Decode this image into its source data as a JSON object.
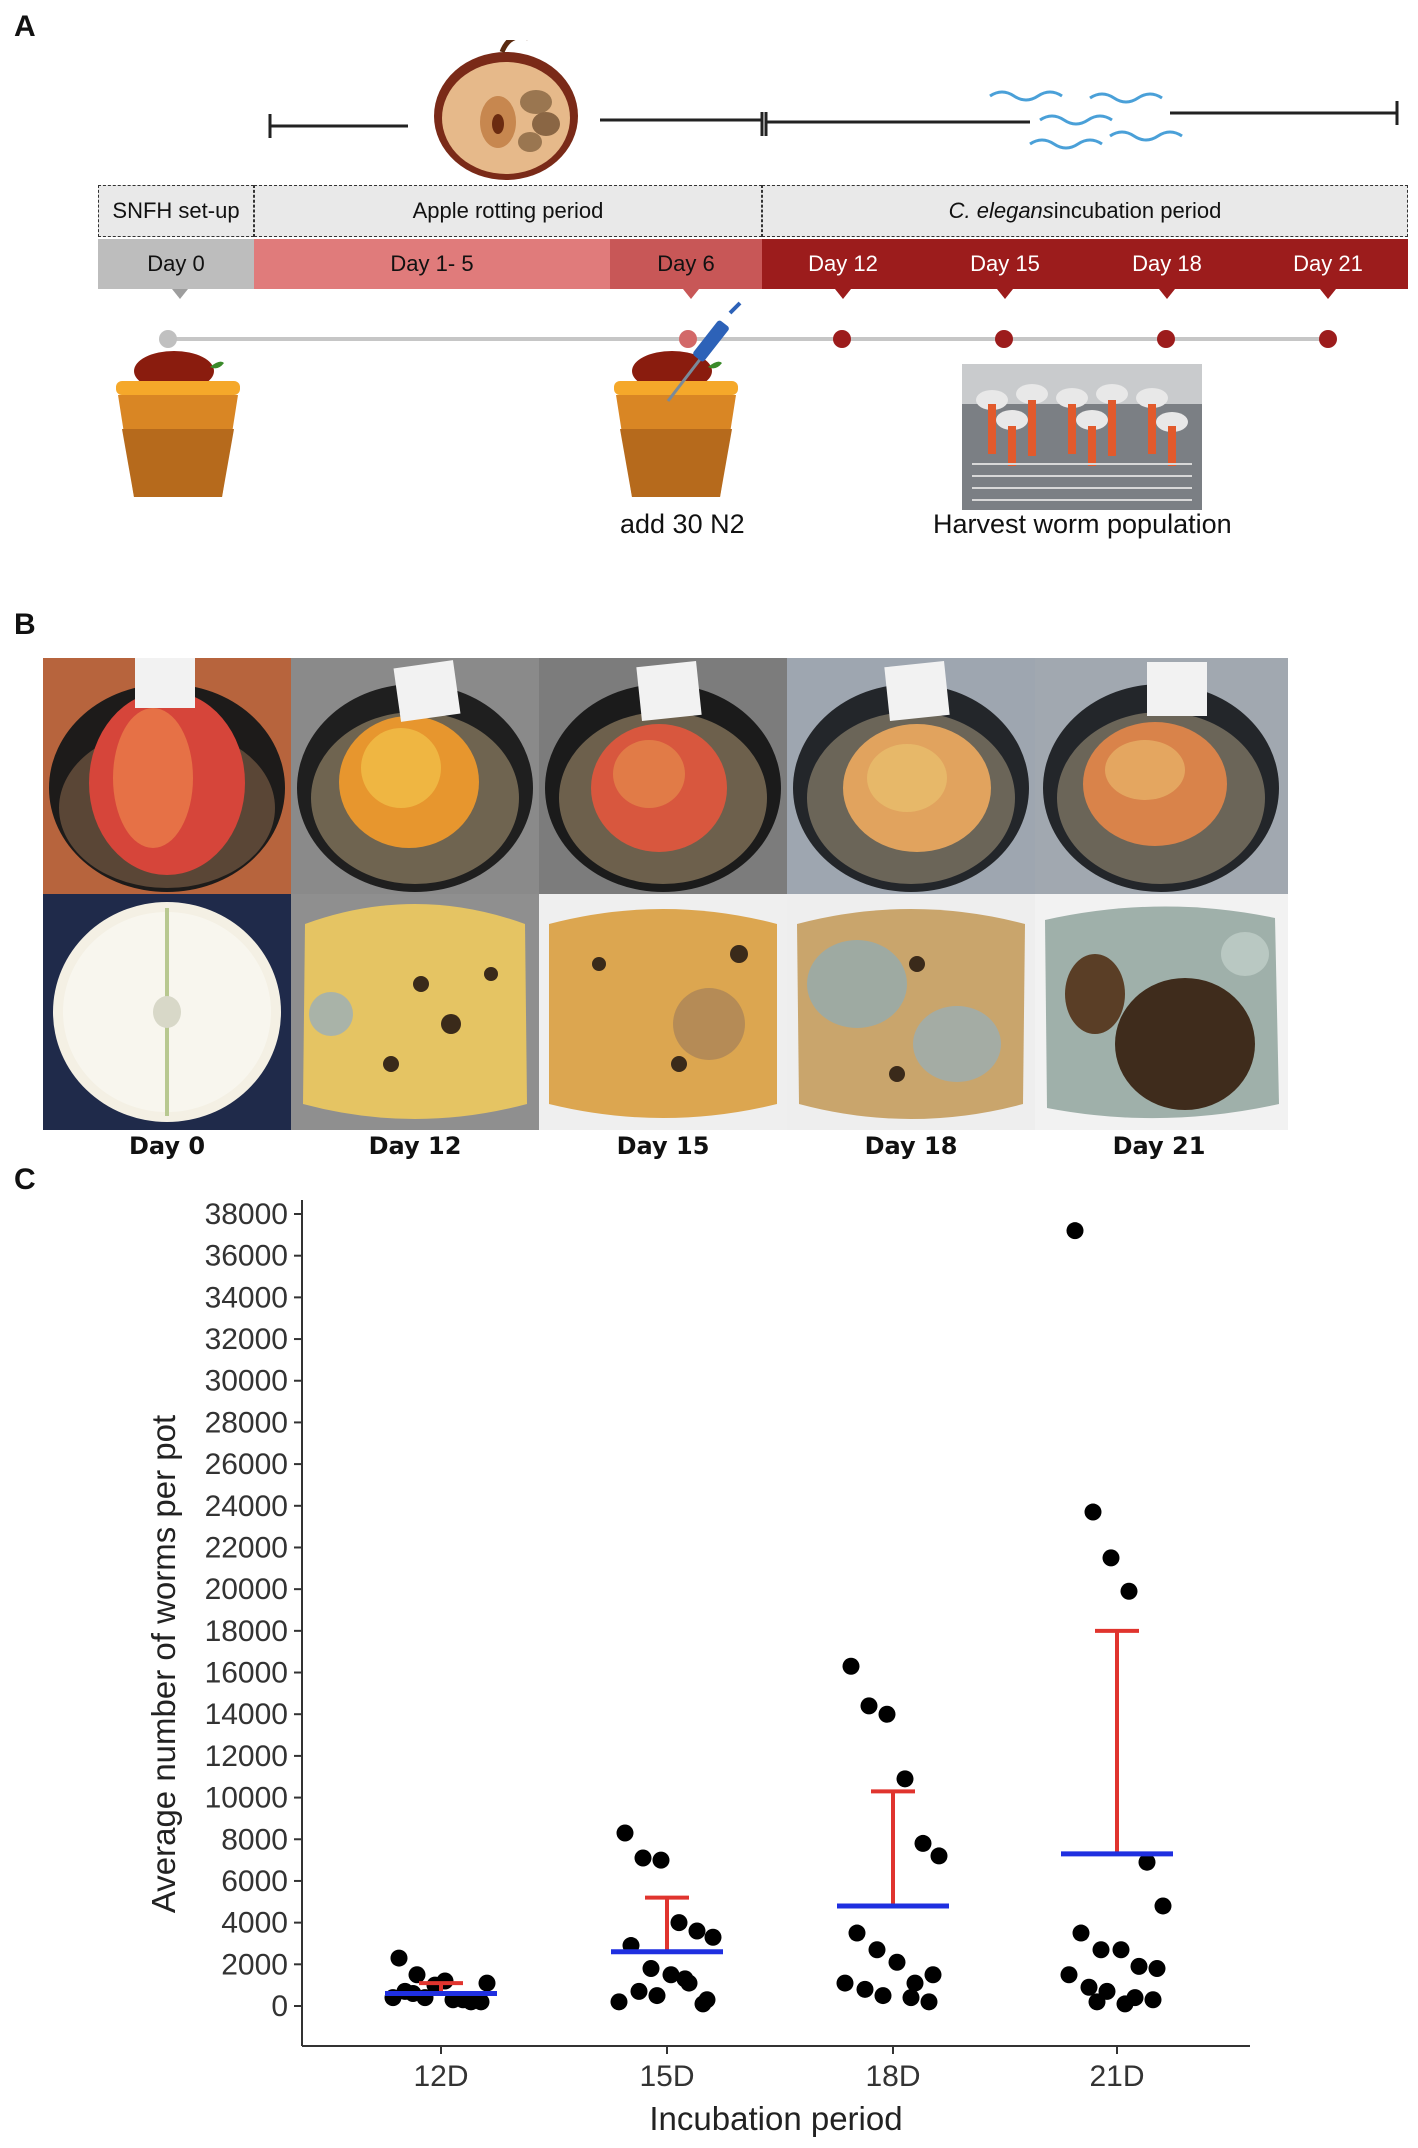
{
  "panels": {
    "a": "A",
    "b": "B",
    "c": "C"
  },
  "timeline": {
    "phases": [
      {
        "label": "SNFH set-up"
      },
      {
        "label": "Apple rotting period"
      },
      {
        "label_italic": "C. elegans",
        "label_rest": " incubation period"
      }
    ],
    "days": [
      "Day 0",
      "Day 1- 5",
      "Day 6",
      "Day 12",
      "Day 15",
      "Day 18",
      "Day 21"
    ],
    "add_label": "add 30 N2",
    "harvest_label": "Harvest  worm population"
  },
  "photos": {
    "labels": [
      "Day 0",
      "Day 12",
      "Day 15",
      "Day 18",
      "Day 21"
    ]
  },
  "colors": {
    "gray": "#bdbdbd",
    "light_red": "#e07b7b",
    "mid_red": "#c85757",
    "dark_red": "#9c1c1c",
    "mean": "#1f2fe0",
    "sd": "#e0342e"
  },
  "chart_data": {
    "type": "scatter",
    "xlabel": "Incubation period",
    "ylabel": "Average number of worms per pot",
    "categories": [
      "12D",
      "15D",
      "18D",
      "21D"
    ],
    "ylim": [
      0,
      38000
    ],
    "yticks": [
      0,
      2000,
      4000,
      6000,
      8000,
      10000,
      12000,
      14000,
      16000,
      18000,
      20000,
      22000,
      24000,
      26000,
      28000,
      30000,
      32000,
      34000,
      36000,
      38000
    ],
    "points": [
      [
        2300,
        1500,
        1000,
        300,
        200,
        1100,
        700,
        400,
        1200,
        300,
        200,
        400,
        600
      ],
      [
        8300,
        7100,
        7000,
        4000,
        3600,
        3300,
        2900,
        1800,
        1500,
        1100,
        300,
        200,
        700,
        500,
        1300,
        100
      ],
      [
        16300,
        14400,
        14000,
        10900,
        7800,
        7200,
        3500,
        2700,
        2100,
        1100,
        1500,
        1100,
        800,
        500,
        400,
        200
      ],
      [
        37200,
        23700,
        21500,
        19900,
        6900,
        4800,
        3500,
        2700,
        2700,
        1900,
        1800,
        1500,
        900,
        700,
        400,
        300,
        200,
        100
      ]
    ],
    "mean": [
      600,
      2600,
      4800,
      7300
    ],
    "upper": [
      1100,
      5200,
      10300,
      18000
    ]
  }
}
